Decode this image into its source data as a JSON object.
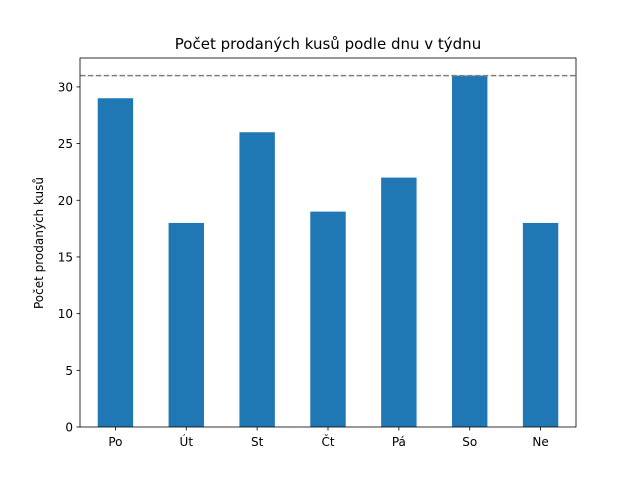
{
  "chart_data": {
    "type": "bar",
    "title": "Počet prodaných kusů podle dnu v týdnu",
    "xlabel": "",
    "ylabel": "Počet prodaných kusů",
    "categories": [
      "Po",
      "Út",
      "St",
      "Čt",
      "Pá",
      "So",
      "Ne"
    ],
    "values": [
      29,
      18,
      26,
      19,
      22,
      31,
      18
    ],
    "ylim": [
      0,
      32.55
    ],
    "yticks": [
      0,
      5,
      10,
      15,
      20,
      25,
      30
    ],
    "reference_line": {
      "value": 31,
      "style": "dashed",
      "color": "#808080"
    },
    "bar_color": "#1f77b4",
    "grid": false,
    "legend": "none"
  }
}
